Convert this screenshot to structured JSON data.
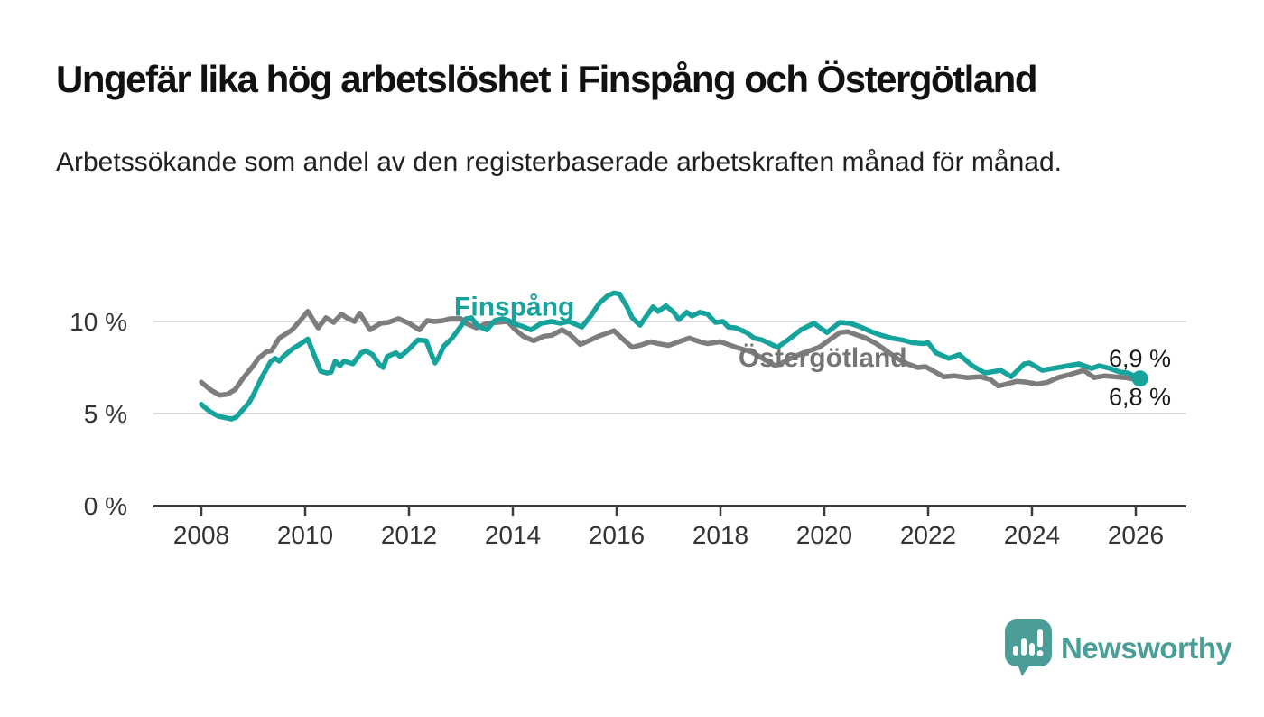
{
  "header": {
    "title": "Ungefär lika hög arbetslöshet i Finspång och Östergötland",
    "subtitle": "Arbetssökande som andel av den registerbaserade arbetskraften månad för månad."
  },
  "chart_data": {
    "type": "line",
    "title": "Ungefär lika hög arbetslöshet i Finspång och Östergötland",
    "subtitle": "Arbetssökande som andel av den registerbaserade arbetskraften månad för månad.",
    "unit": "%",
    "grid": "horizontal-only",
    "legend_position": "inline-labels",
    "colors": {
      "finspang": "#16a39b",
      "ostergotland": "#7d7d7d",
      "ostergotland_label": "#757575",
      "axis": "#3b3b3b",
      "gridline": "#d9d9d9",
      "tick_text": "#333333",
      "value_text": "#1a1a1a"
    },
    "x_axis": {
      "range_years": [
        2007.1,
        2027.0
      ],
      "ticks": [
        "2008",
        "2010",
        "2012",
        "2014",
        "2016",
        "2018",
        "2020",
        "2022",
        "2024",
        "2026"
      ],
      "tick_values": [
        2008,
        2010,
        2012,
        2014,
        2016,
        2018,
        2020,
        2022,
        2024,
        2026
      ]
    },
    "y_axis": {
      "range": [
        0,
        12.5
      ],
      "ticks": [
        {
          "label": "0 %",
          "value": 0
        },
        {
          "label": "5 %",
          "value": 5
        },
        {
          "label": "10 %",
          "value": 10
        }
      ]
    },
    "series": [
      {
        "id": "ostergotland",
        "name": "Östergötland",
        "color": "#7d7d7d",
        "label_color": "#757575",
        "label_at": [
          2019.97,
          8.1
        ],
        "end_label": "6,8 %",
        "end_marker": false,
        "points": [
          [
            2008.0,
            6.7
          ],
          [
            2008.17,
            6.3
          ],
          [
            2008.35,
            6.0
          ],
          [
            2008.5,
            6.05
          ],
          [
            2008.65,
            6.3
          ],
          [
            2008.8,
            6.9
          ],
          [
            2009.0,
            7.6
          ],
          [
            2009.1,
            8.0
          ],
          [
            2009.25,
            8.35
          ],
          [
            2009.35,
            8.4
          ],
          [
            2009.5,
            9.1
          ],
          [
            2009.75,
            9.55
          ],
          [
            2009.92,
            10.1
          ],
          [
            2010.05,
            10.55
          ],
          [
            2010.25,
            9.65
          ],
          [
            2010.4,
            10.2
          ],
          [
            2010.55,
            9.95
          ],
          [
            2010.7,
            10.4
          ],
          [
            2010.8,
            10.2
          ],
          [
            2010.95,
            10.0
          ],
          [
            2011.05,
            10.45
          ],
          [
            2011.25,
            9.55
          ],
          [
            2011.45,
            9.9
          ],
          [
            2011.6,
            9.95
          ],
          [
            2011.8,
            10.15
          ],
          [
            2012.0,
            9.9
          ],
          [
            2012.2,
            9.55
          ],
          [
            2012.35,
            10.05
          ],
          [
            2012.5,
            10.0
          ],
          [
            2012.65,
            10.05
          ],
          [
            2012.8,
            10.15
          ],
          [
            2013.0,
            10.15
          ],
          [
            2013.1,
            9.9
          ],
          [
            2013.3,
            9.65
          ],
          [
            2013.5,
            9.9
          ],
          [
            2013.7,
            9.95
          ],
          [
            2013.9,
            10.0
          ],
          [
            2014.05,
            9.55
          ],
          [
            2014.2,
            9.2
          ],
          [
            2014.4,
            8.95
          ],
          [
            2014.6,
            9.2
          ],
          [
            2014.75,
            9.25
          ],
          [
            2014.95,
            9.55
          ],
          [
            2015.1,
            9.3
          ],
          [
            2015.3,
            8.75
          ],
          [
            2015.5,
            9.0
          ],
          [
            2015.65,
            9.2
          ],
          [
            2015.95,
            9.5
          ],
          [
            2016.1,
            9.1
          ],
          [
            2016.3,
            8.6
          ],
          [
            2016.5,
            8.75
          ],
          [
            2016.65,
            8.9
          ],
          [
            2016.8,
            8.8
          ],
          [
            2017.0,
            8.7
          ],
          [
            2017.2,
            8.9
          ],
          [
            2017.4,
            9.1
          ],
          [
            2017.6,
            8.9
          ],
          [
            2017.75,
            8.8
          ],
          [
            2018.0,
            8.9
          ],
          [
            2018.3,
            8.6
          ],
          [
            2018.6,
            8.35
          ],
          [
            2018.9,
            7.85
          ],
          [
            2019.05,
            7.6
          ],
          [
            2019.15,
            7.7
          ],
          [
            2019.35,
            8.0
          ],
          [
            2019.6,
            8.3
          ],
          [
            2019.9,
            8.6
          ],
          [
            2020.1,
            9.0
          ],
          [
            2020.3,
            9.4
          ],
          [
            2020.45,
            9.45
          ],
          [
            2020.6,
            9.3
          ],
          [
            2020.8,
            9.1
          ],
          [
            2021.0,
            8.8
          ],
          [
            2021.2,
            8.4
          ],
          [
            2021.4,
            8.0
          ],
          [
            2021.6,
            7.7
          ],
          [
            2021.8,
            7.5
          ],
          [
            2021.95,
            7.55
          ],
          [
            2022.3,
            7.0
          ],
          [
            2022.5,
            7.05
          ],
          [
            2022.75,
            6.95
          ],
          [
            2023.0,
            7.0
          ],
          [
            2023.2,
            6.85
          ],
          [
            2023.35,
            6.5
          ],
          [
            2023.5,
            6.6
          ],
          [
            2023.7,
            6.75
          ],
          [
            2023.9,
            6.7
          ],
          [
            2024.1,
            6.6
          ],
          [
            2024.3,
            6.7
          ],
          [
            2024.5,
            6.95
          ],
          [
            2024.7,
            7.1
          ],
          [
            2025.0,
            7.35
          ],
          [
            2025.2,
            6.95
          ],
          [
            2025.4,
            7.05
          ],
          [
            2025.6,
            7.0
          ],
          [
            2025.8,
            6.95
          ],
          [
            2026.08,
            6.8
          ]
        ]
      },
      {
        "id": "finspang",
        "name": "Finspång",
        "color": "#16a39b",
        "label_color": "#16a39b",
        "label_at": [
          2014.03,
          10.85
        ],
        "end_label": "6,9 %",
        "end_marker": true,
        "points": [
          [
            2008.0,
            5.5
          ],
          [
            2008.08,
            5.3
          ],
          [
            2008.17,
            5.1
          ],
          [
            2008.33,
            4.85
          ],
          [
            2008.5,
            4.75
          ],
          [
            2008.58,
            4.7
          ],
          [
            2008.67,
            4.8
          ],
          [
            2008.83,
            5.3
          ],
          [
            2008.92,
            5.6
          ],
          [
            2009.0,
            6.0
          ],
          [
            2009.17,
            7.0
          ],
          [
            2009.33,
            7.8
          ],
          [
            2009.42,
            8.0
          ],
          [
            2009.5,
            7.85
          ],
          [
            2009.58,
            8.1
          ],
          [
            2009.75,
            8.5
          ],
          [
            2009.92,
            8.8
          ],
          [
            2010.05,
            9.05
          ],
          [
            2010.17,
            8.2
          ],
          [
            2010.3,
            7.3
          ],
          [
            2010.42,
            7.2
          ],
          [
            2010.5,
            7.25
          ],
          [
            2010.58,
            7.85
          ],
          [
            2010.67,
            7.6
          ],
          [
            2010.75,
            7.85
          ],
          [
            2010.92,
            7.7
          ],
          [
            2011.08,
            8.3
          ],
          [
            2011.17,
            8.4
          ],
          [
            2011.3,
            8.2
          ],
          [
            2011.42,
            7.7
          ],
          [
            2011.5,
            7.5
          ],
          [
            2011.58,
            8.1
          ],
          [
            2011.75,
            8.3
          ],
          [
            2011.83,
            8.1
          ],
          [
            2011.92,
            8.3
          ],
          [
            2012.0,
            8.5
          ],
          [
            2012.17,
            9.0
          ],
          [
            2012.33,
            8.95
          ],
          [
            2012.42,
            8.3
          ],
          [
            2012.5,
            7.75
          ],
          [
            2012.58,
            8.1
          ],
          [
            2012.67,
            8.65
          ],
          [
            2012.83,
            9.1
          ],
          [
            2012.95,
            9.55
          ],
          [
            2013.1,
            10.15
          ],
          [
            2013.2,
            10.2
          ],
          [
            2013.33,
            9.75
          ],
          [
            2013.5,
            9.55
          ],
          [
            2013.65,
            10.05
          ],
          [
            2013.8,
            10.15
          ],
          [
            2013.92,
            10.05
          ],
          [
            2014.0,
            9.9
          ],
          [
            2014.17,
            9.75
          ],
          [
            2014.35,
            9.55
          ],
          [
            2014.55,
            9.9
          ],
          [
            2014.75,
            10.0
          ],
          [
            2014.92,
            9.9
          ],
          [
            2015.08,
            10.0
          ],
          [
            2015.25,
            9.8
          ],
          [
            2015.33,
            9.7
          ],
          [
            2015.5,
            10.3
          ],
          [
            2015.67,
            11.0
          ],
          [
            2015.83,
            11.4
          ],
          [
            2015.95,
            11.55
          ],
          [
            2016.05,
            11.5
          ],
          [
            2016.2,
            10.8
          ],
          [
            2016.3,
            10.2
          ],
          [
            2016.45,
            9.8
          ],
          [
            2016.6,
            10.4
          ],
          [
            2016.7,
            10.8
          ],
          [
            2016.8,
            10.55
          ],
          [
            2016.95,
            10.85
          ],
          [
            2017.1,
            10.5
          ],
          [
            2017.2,
            10.1
          ],
          [
            2017.35,
            10.5
          ],
          [
            2017.45,
            10.3
          ],
          [
            2017.6,
            10.5
          ],
          [
            2017.75,
            10.4
          ],
          [
            2017.9,
            9.95
          ],
          [
            2018.05,
            10.0
          ],
          [
            2018.15,
            9.7
          ],
          [
            2018.3,
            9.65
          ],
          [
            2018.5,
            9.4
          ],
          [
            2018.65,
            9.1
          ],
          [
            2018.8,
            9.0
          ],
          [
            2018.95,
            8.8
          ],
          [
            2019.1,
            8.6
          ],
          [
            2019.3,
            9.0
          ],
          [
            2019.55,
            9.55
          ],
          [
            2019.8,
            9.9
          ],
          [
            2019.95,
            9.6
          ],
          [
            2020.05,
            9.4
          ],
          [
            2020.3,
            9.95
          ],
          [
            2020.5,
            9.9
          ],
          [
            2020.7,
            9.7
          ],
          [
            2020.9,
            9.45
          ],
          [
            2021.1,
            9.25
          ],
          [
            2021.3,
            9.1
          ],
          [
            2021.5,
            9.0
          ],
          [
            2021.7,
            8.85
          ],
          [
            2021.9,
            8.8
          ],
          [
            2022.0,
            8.85
          ],
          [
            2022.15,
            8.3
          ],
          [
            2022.4,
            8.0
          ],
          [
            2022.6,
            8.2
          ],
          [
            2022.85,
            7.6
          ],
          [
            2023.1,
            7.2
          ],
          [
            2023.4,
            7.35
          ],
          [
            2023.6,
            7.0
          ],
          [
            2023.85,
            7.7
          ],
          [
            2023.95,
            7.75
          ],
          [
            2024.2,
            7.35
          ],
          [
            2024.5,
            7.5
          ],
          [
            2024.7,
            7.6
          ],
          [
            2024.9,
            7.7
          ],
          [
            2025.15,
            7.45
          ],
          [
            2025.3,
            7.6
          ],
          [
            2025.5,
            7.45
          ],
          [
            2025.7,
            7.25
          ],
          [
            2025.85,
            7.2
          ],
          [
            2026.08,
            6.9
          ]
        ]
      }
    ]
  },
  "footer": {
    "brand": "Newsworthy",
    "brand_color": "#4a9e97"
  }
}
